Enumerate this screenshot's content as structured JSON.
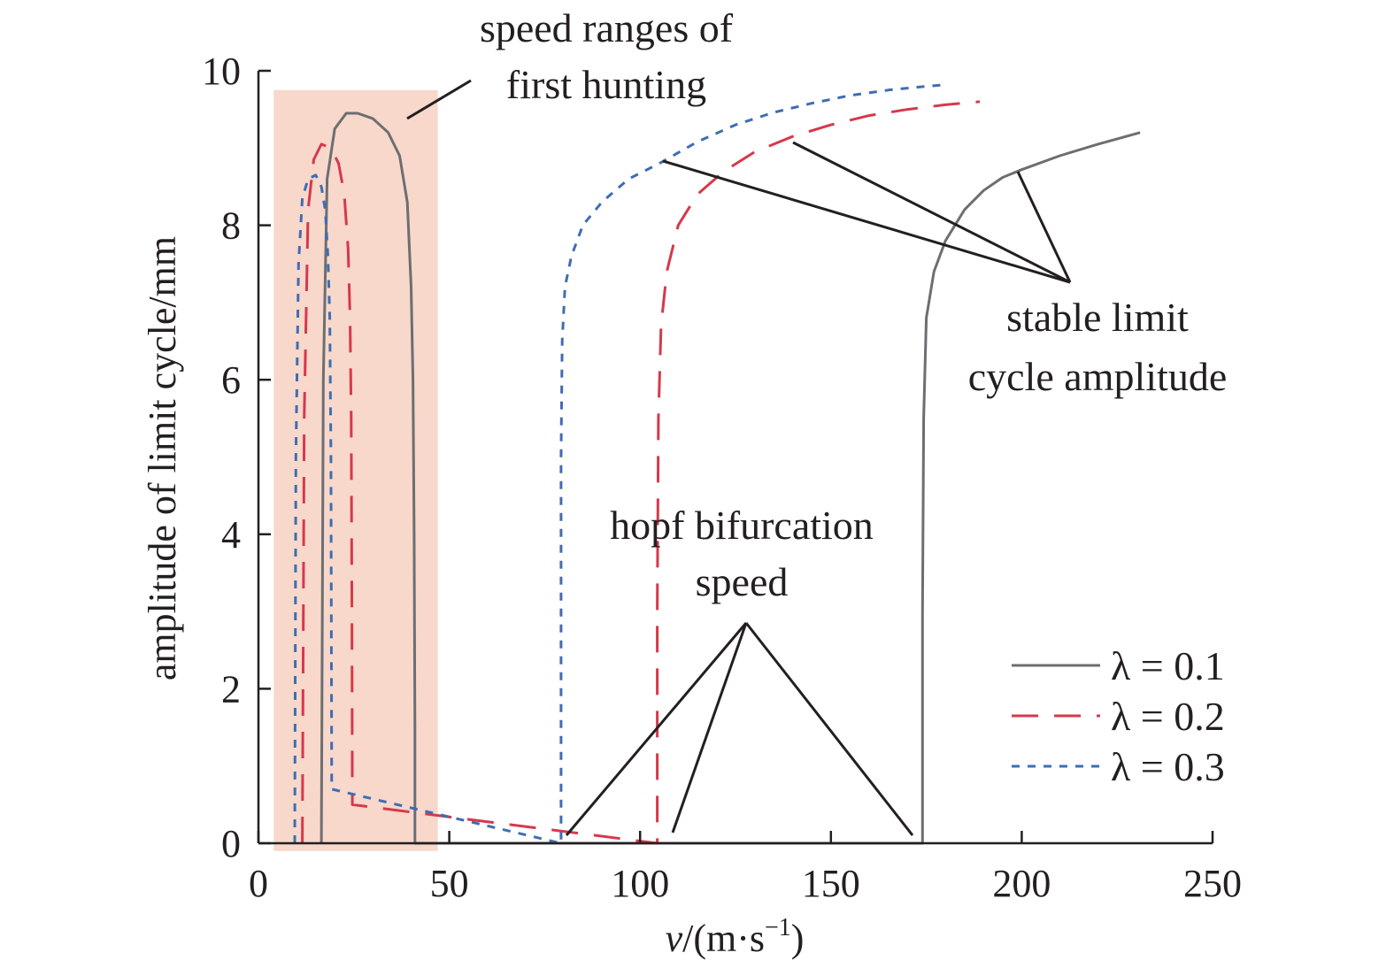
{
  "chart_data": {
    "type": "line",
    "title": "",
    "xlabel": "v/(m·s−1)",
    "ylabel": "amplitude of limit cycle/mm",
    "xlim": [
      0,
      250
    ],
    "ylim": [
      0,
      10
    ],
    "x_ticks": [
      "0",
      "50",
      "100",
      "150",
      "200",
      "250"
    ],
    "y_ticks": [
      "0",
      "2",
      "4",
      "6",
      "8",
      "10"
    ],
    "grid": false,
    "legend_position": "bottom-right",
    "series": [
      {
        "name": "λ = 0.1",
        "color": "#6d6e71",
        "style": "solid",
        "x": [
          16.5,
          17,
          18,
          20,
          23,
          26,
          30,
          34,
          37,
          39,
          40,
          40.5,
          40.8,
          41.0,
          41.0,
          174,
          174,
          174.3,
          175,
          177,
          180,
          185,
          190,
          195,
          200,
          210,
          220,
          231
        ],
        "y": [
          0,
          6.0,
          8.6,
          9.25,
          9.45,
          9.45,
          9.38,
          9.2,
          8.9,
          8.3,
          7.2,
          6.0,
          4.0,
          1.5,
          0,
          0,
          3.0,
          5.5,
          6.8,
          7.4,
          7.8,
          8.2,
          8.45,
          8.62,
          8.72,
          8.9,
          9.05,
          9.2
        ]
      },
      {
        "name": "λ = 0.2",
        "color": "#d7384b",
        "style": "dashed",
        "x": [
          11.5,
          12,
          13,
          14.5,
          16.5,
          19,
          21,
          22.5,
          23.5,
          24,
          24.3,
          24.5,
          24.6,
          104.5,
          104.5,
          104.8,
          105.5,
          107,
          110,
          115,
          122,
          130,
          140,
          150,
          160,
          170,
          180,
          189
        ],
        "y": [
          0,
          5.5,
          8.2,
          8.85,
          9.05,
          9.0,
          8.8,
          8.4,
          7.7,
          6.8,
          5.5,
          3.0,
          0.5,
          0,
          3.0,
          5.5,
          6.7,
          7.4,
          8.0,
          8.4,
          8.7,
          8.95,
          9.15,
          9.3,
          9.42,
          9.5,
          9.56,
          9.6
        ]
      },
      {
        "name": "λ = 0.3",
        "color": "#3f6db3",
        "style": "dotted",
        "x": [
          9.5,
          9.8,
          10.5,
          11.5,
          13,
          15,
          16.5,
          17.5,
          18.2,
          18.7,
          19,
          19.2,
          79.3,
          79.3,
          79.6,
          80.3,
          82,
          85,
          90,
          97,
          105,
          115,
          125,
          135,
          145,
          155,
          165,
          175,
          180.5
        ],
        "y": [
          0,
          5.0,
          7.5,
          8.35,
          8.6,
          8.65,
          8.5,
          8.2,
          7.6,
          6.8,
          5.0,
          0.7,
          0,
          5.0,
          6.5,
          7.2,
          7.6,
          8.0,
          8.3,
          8.6,
          8.8,
          9.08,
          9.3,
          9.46,
          9.58,
          9.68,
          9.75,
          9.8,
          9.82
        ]
      }
    ],
    "highlight_region": {
      "x": [
        4,
        47
      ],
      "y": [
        -0.1,
        9.75
      ],
      "color": "#f7d8cb"
    },
    "annotations": [
      {
        "lines": [
          "speed ranges of",
          "first hunting"
        ]
      },
      {
        "lines": [
          "stable limit",
          "cycle amplitude"
        ]
      },
      {
        "lines": [
          "hopf bifurcation",
          "speed"
        ]
      }
    ]
  }
}
